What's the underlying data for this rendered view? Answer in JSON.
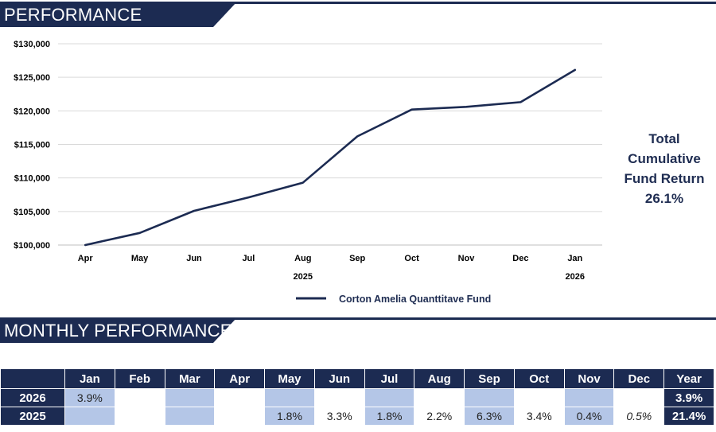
{
  "sections": {
    "performance_title": "PERFORMANCE",
    "monthly_title": "MONTHLY PERFORMANCE"
  },
  "summary": {
    "line1": "Total",
    "line2": "Cumulative",
    "line3": "Fund Return",
    "value": "26.1%"
  },
  "chart_data": {
    "type": "line",
    "title": "",
    "xlabel": "",
    "ylabel": "",
    "x": [
      "Apr",
      "May",
      "Jun",
      "Jul",
      "Aug",
      "Sep",
      "Oct",
      "Nov",
      "Dec",
      "Jan"
    ],
    "year_labels": [
      {
        "under": "Aug",
        "label": "2025"
      },
      {
        "under": "Jan",
        "label": "2026"
      }
    ],
    "ylim": [
      100000,
      130000
    ],
    "yticks": [
      100000,
      105000,
      110000,
      115000,
      120000,
      125000,
      130000
    ],
    "ytick_labels": [
      "$100,000",
      "$105,000",
      "$110,000",
      "$115,000",
      "$120,000",
      "$125,000",
      "$130,000"
    ],
    "series": [
      {
        "name": "Corton Amelia Quanttitave Fund",
        "color": "#1c2b52",
        "values": [
          100000,
          101800,
          105100,
          107100,
          109300,
          116200,
          120200,
          120600,
          121300,
          126100
        ]
      }
    ],
    "legend": "bottom-center",
    "grid": true
  },
  "monthly": {
    "headers": [
      "",
      "Jan",
      "Feb",
      "Mar",
      "Apr",
      "May",
      "Jun",
      "Jul",
      "Aug",
      "Sep",
      "Oct",
      "Nov",
      "Dec",
      "Year"
    ],
    "rows": [
      {
        "year": "2026",
        "cells": [
          "3.9%",
          "",
          "",
          "",
          "",
          "",
          "",
          "",
          "",
          "",
          "",
          ""
        ],
        "total": "3.9%"
      },
      {
        "year": "2025",
        "cells": [
          "",
          "",
          "",
          "",
          "1.8%",
          "3.3%",
          "1.8%",
          "2.2%",
          "6.3%",
          "3.4%",
          "0.4%",
          "0.5%"
        ],
        "total": "21.4%"
      }
    ]
  },
  "colors": {
    "navy": "#1c2b52",
    "shade": "#b4c6e7",
    "grid": "#d9d9d9"
  }
}
